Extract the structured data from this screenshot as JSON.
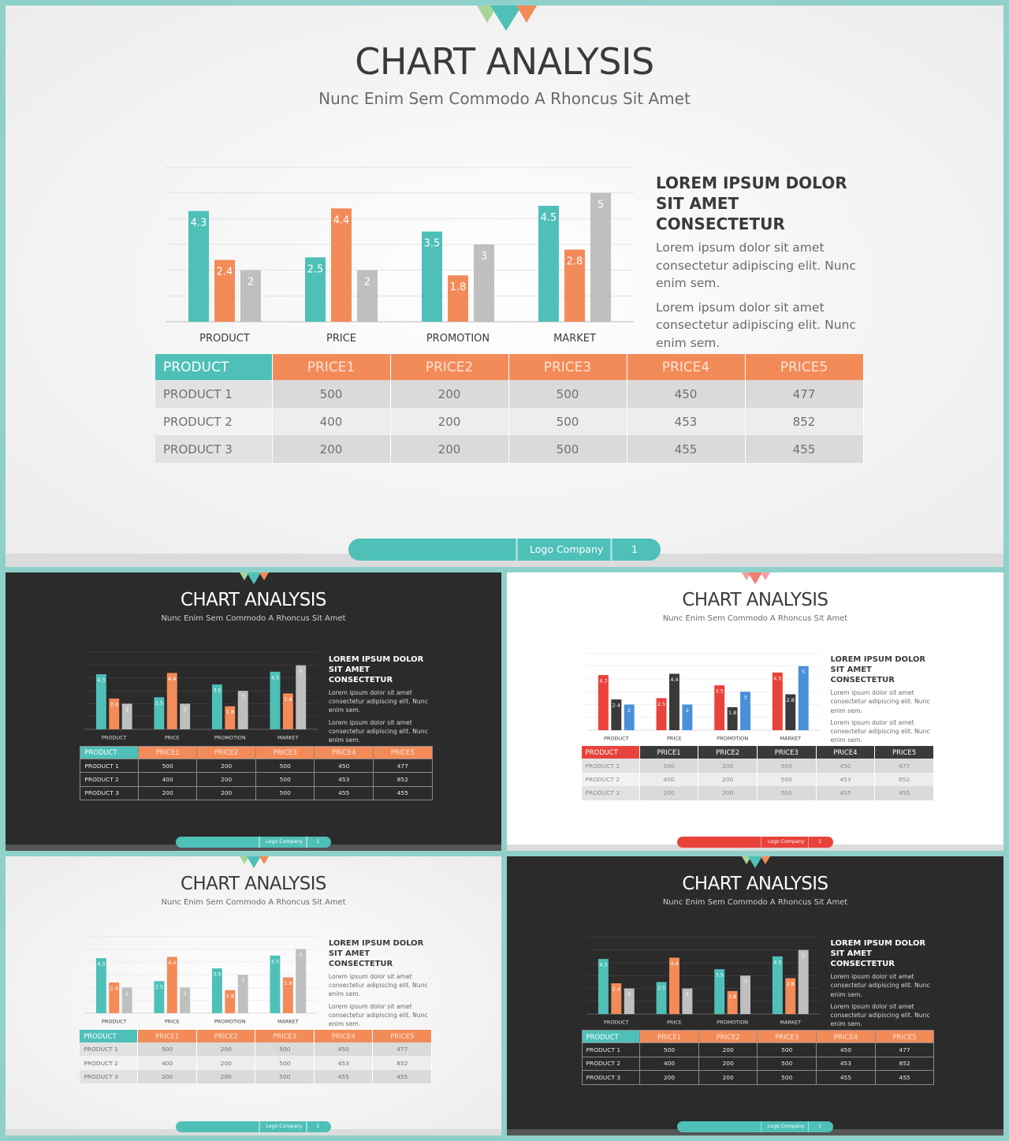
{
  "slide": {
    "title": "CHART ANALYSIS",
    "subtitle": "Nunc Enim Sem Commodo A Rhoncus Sit Amet",
    "side_heading": "LOREM IPSUM DOLOR SIT AMET CONSECTETUR",
    "side_paragraph_1": "Lorem ipsum dolor sit amet consectetur adipiscing elit. Nunc enim sem.",
    "side_paragraph_2": "Lorem ipsum dolor sit amet consectetur adipiscing elit. Nunc enim sem.",
    "footer_label": "Logo Company",
    "page_number": "1"
  },
  "chart_data": {
    "type": "bar",
    "categories": [
      "PRODUCT",
      "PRICE",
      "PROMOTION",
      "MARKET"
    ],
    "series": [
      {
        "values": [
          4.3,
          2.5,
          3.5,
          4.5
        ]
      },
      {
        "values": [
          2.4,
          4.4,
          1.8,
          2.8
        ]
      },
      {
        "values": [
          2,
          2,
          3,
          5
        ]
      }
    ],
    "ylim": [
      0,
      6
    ],
    "grid": true,
    "data_labels": true
  },
  "table": {
    "headers": [
      "PRODUCT",
      "PRICE1",
      "PRICE2",
      "PRICE3",
      "PRICE4",
      "PRICE5"
    ],
    "rows": [
      [
        "PRODUCT 1",
        "500",
        "200",
        "500",
        "450",
        "477"
      ],
      [
        "PRODUCT 2",
        "400",
        "200",
        "500",
        "453",
        "852"
      ],
      [
        "PRODUCT 3",
        "200",
        "200",
        "500",
        "455",
        "455"
      ]
    ]
  },
  "themes": {
    "light": {
      "accent": "#4ec0b8",
      "highlight": "#f38b59",
      "series_colors": [
        "#4ec0b8",
        "#f38b59",
        "#bfbfbf"
      ],
      "triangle_colors": [
        "#a8d49a",
        "#4ec0b8",
        "#f38b59"
      ]
    },
    "dark": {
      "accent": "#4ec0b8",
      "highlight": "#f38b59",
      "series_colors": [
        "#4ec0b8",
        "#f38b59",
        "#bfbfbf"
      ],
      "triangle_colors": [
        "#a8d49a",
        "#4ec0b8",
        "#f38b59"
      ]
    },
    "white_red": {
      "accent": "#e8423a",
      "highlight": "#3a3a3a",
      "series_colors": [
        "#e8423a",
        "#3a3a3a",
        "#4a90d9"
      ],
      "triangle_colors": [
        "#f4a0a0",
        "#f07d6e",
        "#f4a0a0"
      ]
    }
  }
}
